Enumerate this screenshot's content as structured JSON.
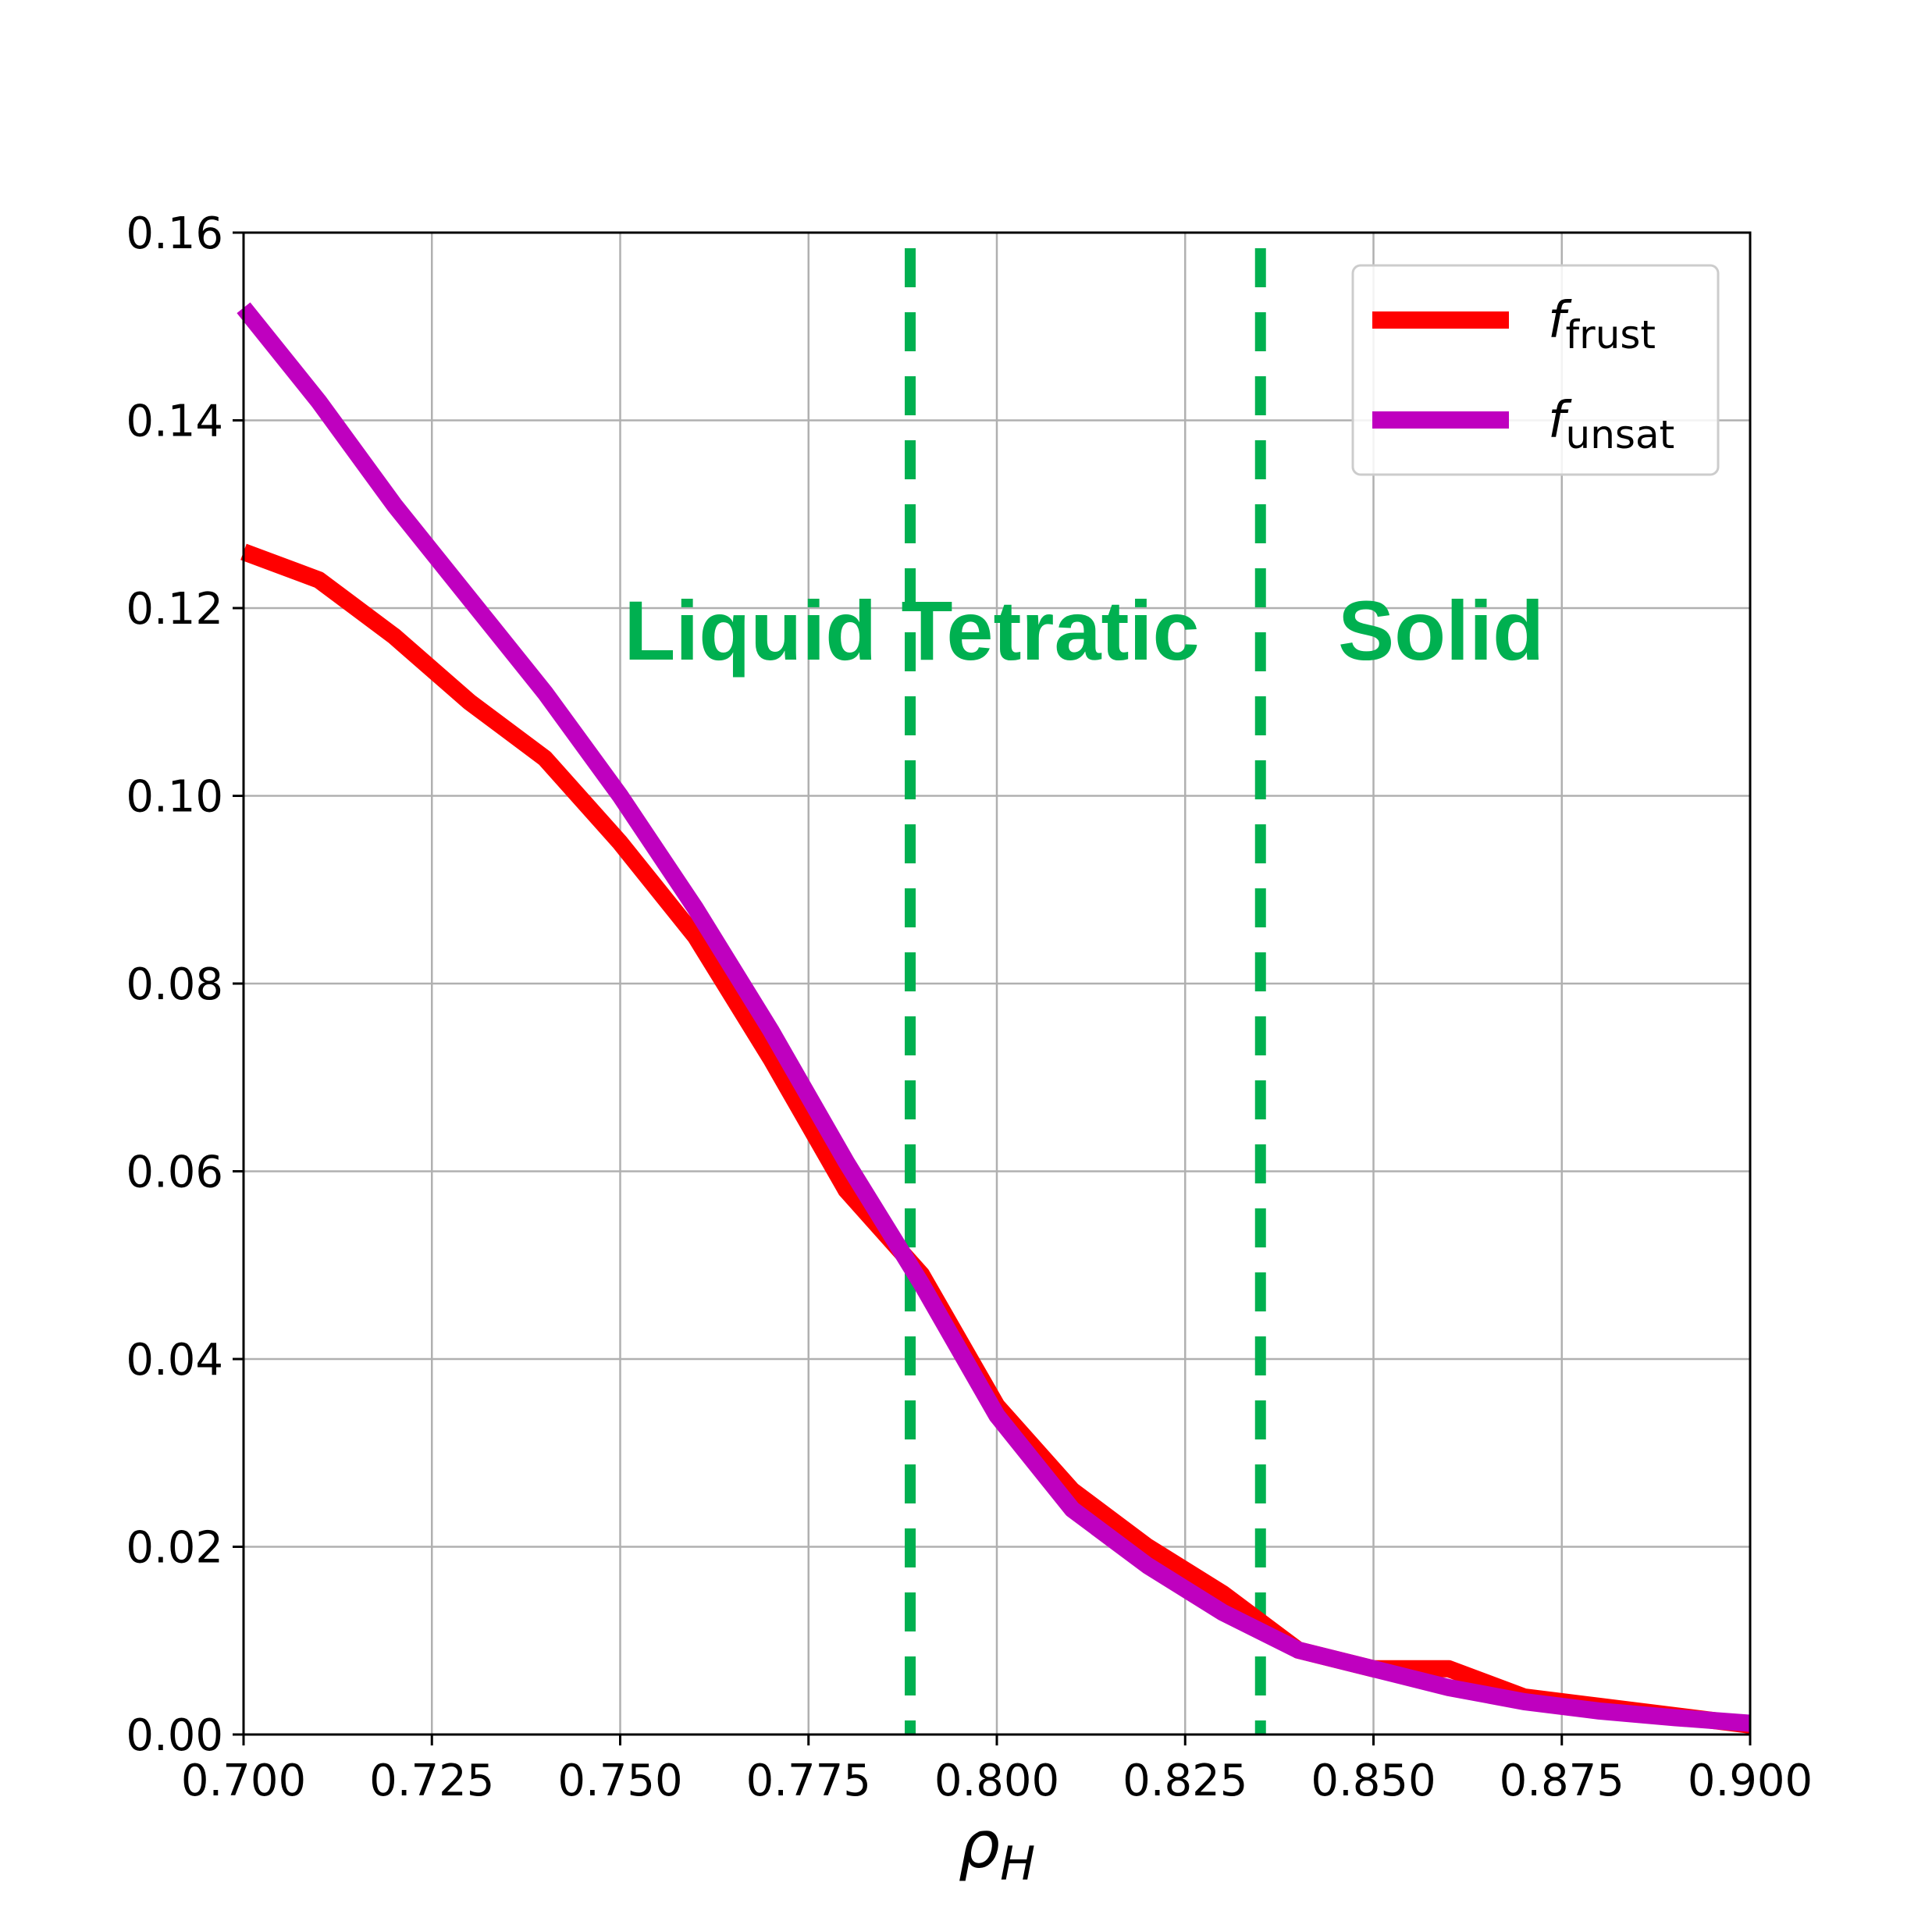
{
  "chart_data": {
    "type": "line",
    "xlabel": "ρ",
    "xlabel_sub": "H",
    "ylabel": "",
    "xlim": [
      0.7,
      0.9
    ],
    "ylim": [
      0.0,
      0.16
    ],
    "grid": true,
    "legend_position": "top-right",
    "x_ticks": [
      "0.700",
      "0.725",
      "0.750",
      "0.775",
      "0.800",
      "0.825",
      "0.850",
      "0.875",
      "0.900"
    ],
    "x_tick_values": [
      0.7,
      0.725,
      0.75,
      0.775,
      0.8,
      0.825,
      0.85,
      0.875,
      0.9
    ],
    "y_ticks": [
      "0.00",
      "0.02",
      "0.04",
      "0.06",
      "0.08",
      "0.10",
      "0.12",
      "0.14",
      "0.16"
    ],
    "y_tick_values": [
      0.0,
      0.02,
      0.04,
      0.06,
      0.08,
      0.1,
      0.12,
      0.14,
      0.16
    ],
    "x": [
      0.7,
      0.71,
      0.72,
      0.73,
      0.74,
      0.75,
      0.76,
      0.77,
      0.78,
      0.79,
      0.8,
      0.81,
      0.82,
      0.83,
      0.84,
      0.85,
      0.86,
      0.87,
      0.88,
      0.89,
      0.9
    ],
    "series": [
      {
        "name": "f",
        "name_sub": "frust",
        "color": "#ff0000",
        "values": [
          0.126,
          0.123,
          0.117,
          0.11,
          0.104,
          0.095,
          0.085,
          0.072,
          0.058,
          0.049,
          0.035,
          0.026,
          0.02,
          0.015,
          0.009,
          0.007,
          0.007,
          0.004,
          0.003,
          0.002,
          0.001
        ]
      },
      {
        "name": "f",
        "name_sub": "unsat",
        "color": "#bf00bf",
        "values": [
          0.152,
          0.142,
          0.131,
          0.121,
          0.111,
          0.1,
          0.088,
          0.075,
          0.061,
          0.048,
          0.034,
          0.024,
          0.018,
          0.013,
          0.009,
          0.007,
          0.005,
          0.0035,
          0.0025,
          0.0018,
          0.0012
        ]
      }
    ],
    "vertical_lines": [
      {
        "x": 0.7885,
        "color": "#00b050",
        "style": "dashed"
      },
      {
        "x": 0.835,
        "color": "#00b050",
        "style": "dashed"
      }
    ],
    "annotations": [
      {
        "text": "Liquid",
        "x": 0.7505,
        "y": 0.1145,
        "color": "#00b050"
      },
      {
        "text": "Tetratic",
        "x": 0.7873,
        "y": 0.1145,
        "color": "#00b050"
      },
      {
        "text": "Solid",
        "x": 0.8453,
        "y": 0.1145,
        "color": "#00b050"
      }
    ]
  }
}
